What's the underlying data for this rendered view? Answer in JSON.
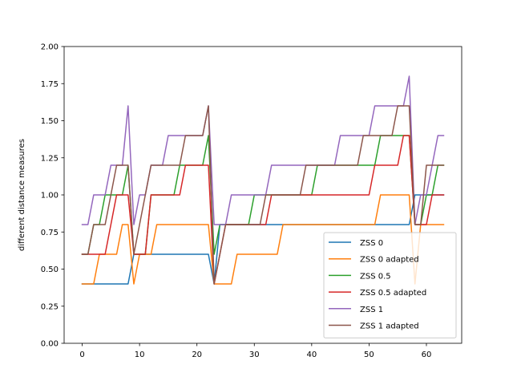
{
  "chart_data": {
    "type": "line",
    "title": "",
    "xlabel": "",
    "ylabel": "different distance measures",
    "xlim": [
      -3.15,
      66.15
    ],
    "ylim": [
      0.0,
      2.0
    ],
    "xticks": [
      0,
      10,
      20,
      30,
      40,
      50,
      60
    ],
    "yticks": [
      0.0,
      0.25,
      0.5,
      0.75,
      1.0,
      1.25,
      1.5,
      1.75,
      2.0
    ],
    "xtick_labels": [
      "0",
      "10",
      "20",
      "30",
      "40",
      "50",
      "60"
    ],
    "ytick_labels": [
      "0.00",
      "0.25",
      "0.50",
      "0.75",
      "1.00",
      "1.25",
      "1.50",
      "1.75",
      "2.00"
    ],
    "grid": false,
    "legend_position": "lower-right",
    "x": [
      0,
      1,
      2,
      3,
      4,
      5,
      6,
      7,
      8,
      9,
      10,
      11,
      12,
      13,
      14,
      15,
      16,
      17,
      18,
      19,
      20,
      21,
      22,
      23,
      24,
      25,
      26,
      27,
      28,
      29,
      30,
      31,
      32,
      33,
      34,
      35,
      36,
      37,
      38,
      39,
      40,
      41,
      42,
      43,
      44,
      45,
      46,
      47,
      48,
      49,
      50,
      51,
      52,
      53,
      54,
      55,
      56,
      57,
      58,
      59,
      60,
      61,
      62,
      63
    ],
    "series": [
      {
        "name": "ZSS 0",
        "color": "#1f77b4",
        "values": [
          0.4,
          0.4,
          0.4,
          0.4,
          0.4,
          0.4,
          0.4,
          0.4,
          0.4,
          0.6,
          0.6,
          0.6,
          0.6,
          0.6,
          0.6,
          0.6,
          0.6,
          0.6,
          0.6,
          0.6,
          0.6,
          0.6,
          0.6,
          0.4,
          0.8,
          0.8,
          0.8,
          0.8,
          0.8,
          0.8,
          0.8,
          0.8,
          0.8,
          0.8,
          0.8,
          0.8,
          0.8,
          0.8,
          0.8,
          0.8,
          0.8,
          0.8,
          0.8,
          0.8,
          0.8,
          0.8,
          0.8,
          0.8,
          0.8,
          0.8,
          0.8,
          0.8,
          0.8,
          0.8,
          0.8,
          0.8,
          0.8,
          0.8,
          1.0,
          1.0,
          1.0,
          1.0,
          1.0,
          1.0
        ]
      },
      {
        "name": "ZSS 0 adapted",
        "color": "#ff7f0e",
        "values": [
          0.4,
          0.4,
          0.4,
          0.6,
          0.6,
          0.6,
          0.6,
          0.8,
          0.8,
          0.4,
          0.6,
          0.6,
          0.6,
          0.8,
          0.8,
          0.8,
          0.8,
          0.8,
          0.8,
          0.8,
          0.8,
          0.8,
          0.8,
          0.4,
          0.4,
          0.4,
          0.4,
          0.6,
          0.6,
          0.6,
          0.6,
          0.6,
          0.6,
          0.6,
          0.6,
          0.8,
          0.8,
          0.8,
          0.8,
          0.8,
          0.8,
          0.8,
          0.8,
          0.8,
          0.8,
          0.8,
          0.8,
          0.8,
          0.8,
          0.8,
          0.8,
          0.8,
          1.0,
          1.0,
          1.0,
          1.0,
          1.0,
          1.0,
          0.4,
          0.8,
          0.8,
          0.8,
          0.8,
          0.8
        ]
      },
      {
        "name": "ZSS 0.5",
        "color": "#2ca02c",
        "values": [
          0.6,
          0.6,
          0.8,
          0.8,
          1.0,
          1.0,
          1.0,
          1.0,
          1.2,
          0.6,
          0.6,
          0.6,
          1.0,
          1.0,
          1.0,
          1.0,
          1.0,
          1.2,
          1.2,
          1.2,
          1.2,
          1.2,
          1.4,
          0.6,
          0.8,
          0.8,
          0.8,
          0.8,
          0.8,
          0.8,
          1.0,
          1.0,
          1.0,
          1.0,
          1.0,
          1.0,
          1.0,
          1.0,
          1.0,
          1.0,
          1.0,
          1.2,
          1.2,
          1.2,
          1.2,
          1.2,
          1.2,
          1.2,
          1.2,
          1.2,
          1.2,
          1.2,
          1.4,
          1.4,
          1.4,
          1.4,
          1.4,
          1.4,
          0.8,
          0.8,
          1.0,
          1.0,
          1.2,
          1.2
        ]
      },
      {
        "name": "ZSS 0.5 adapted",
        "color": "#d62728",
        "values": [
          0.6,
          0.6,
          0.6,
          0.6,
          0.6,
          0.8,
          1.0,
          1.0,
          1.0,
          0.6,
          0.6,
          0.6,
          1.0,
          1.0,
          1.0,
          1.0,
          1.0,
          1.0,
          1.2,
          1.2,
          1.2,
          1.2,
          1.2,
          0.4,
          0.6,
          0.8,
          0.8,
          0.8,
          0.8,
          0.8,
          0.8,
          0.8,
          0.8,
          1.0,
          1.0,
          1.0,
          1.0,
          1.0,
          1.0,
          1.0,
          1.0,
          1.0,
          1.0,
          1.0,
          1.0,
          1.0,
          1.0,
          1.0,
          1.0,
          1.0,
          1.0,
          1.2,
          1.2,
          1.2,
          1.2,
          1.2,
          1.4,
          1.4,
          0.8,
          0.8,
          0.8,
          1.0,
          1.0,
          1.0
        ]
      },
      {
        "name": "ZSS 1",
        "color": "#9467bd",
        "values": [
          0.8,
          0.8,
          1.0,
          1.0,
          1.0,
          1.2,
          1.2,
          1.2,
          1.6,
          0.8,
          1.0,
          1.0,
          1.2,
          1.2,
          1.2,
          1.4,
          1.4,
          1.4,
          1.4,
          1.4,
          1.4,
          1.4,
          1.6,
          0.8,
          0.8,
          0.8,
          1.0,
          1.0,
          1.0,
          1.0,
          1.0,
          1.0,
          1.0,
          1.2,
          1.2,
          1.2,
          1.2,
          1.2,
          1.2,
          1.2,
          1.2,
          1.2,
          1.2,
          1.2,
          1.2,
          1.4,
          1.4,
          1.4,
          1.4,
          1.4,
          1.4,
          1.6,
          1.6,
          1.6,
          1.6,
          1.6,
          1.6,
          1.8,
          0.8,
          1.0,
          1.0,
          1.2,
          1.4,
          1.4
        ]
      },
      {
        "name": "ZSS 1 adapted",
        "color": "#8c564b",
        "values": [
          0.6,
          0.6,
          0.8,
          0.8,
          0.8,
          1.0,
          1.2,
          1.2,
          1.2,
          0.6,
          0.8,
          1.0,
          1.2,
          1.2,
          1.2,
          1.2,
          1.2,
          1.2,
          1.4,
          1.4,
          1.4,
          1.4,
          1.6,
          0.4,
          0.6,
          0.8,
          0.8,
          0.8,
          0.8,
          0.8,
          0.8,
          0.8,
          1.0,
          1.0,
          1.0,
          1.0,
          1.0,
          1.0,
          1.0,
          1.2,
          1.2,
          1.2,
          1.2,
          1.2,
          1.2,
          1.2,
          1.2,
          1.2,
          1.2,
          1.4,
          1.4,
          1.4,
          1.4,
          1.4,
          1.4,
          1.6,
          1.6,
          1.6,
          0.8,
          0.8,
          1.2,
          1.2,
          1.2,
          1.2
        ]
      }
    ]
  }
}
